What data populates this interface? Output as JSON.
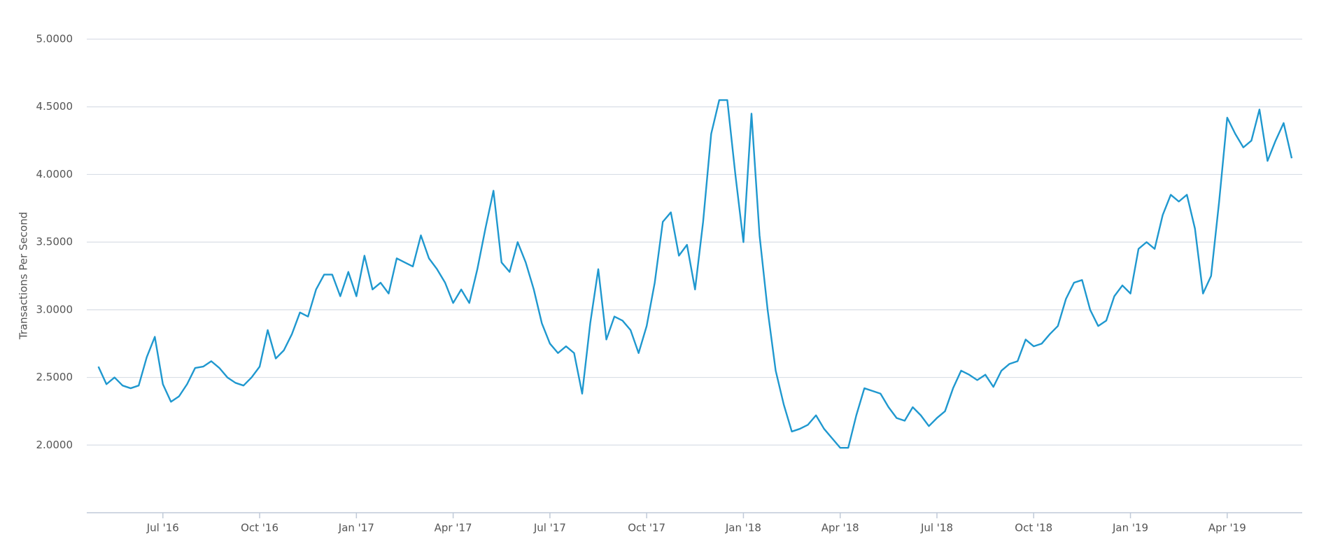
{
  "chart_data": {
    "type": "line",
    "y_label": "Transactions Per Second",
    "xlim": [
      "2016-05",
      "2019-06"
    ],
    "xticks": [
      {
        "value": "2016-07",
        "label": "Jul '16"
      },
      {
        "value": "2016-10",
        "label": "Oct '16"
      },
      {
        "value": "2017-01",
        "label": "Jan '17"
      },
      {
        "value": "2017-04",
        "label": "Apr '17"
      },
      {
        "value": "2017-07",
        "label": "Jul '17"
      },
      {
        "value": "2017-10",
        "label": "Oct '17"
      },
      {
        "value": "2018-01",
        "label": "Jan '18"
      },
      {
        "value": "2018-04",
        "label": "Apr '18"
      },
      {
        "value": "2018-07",
        "label": "Jul '18"
      },
      {
        "value": "2018-10",
        "label": "Oct '18"
      },
      {
        "value": "2019-01",
        "label": "Jan '19"
      },
      {
        "value": "2019-04",
        "label": "Apr '19"
      }
    ],
    "ylim": [
      1.5,
      5.0
    ],
    "yticks": [
      {
        "value": 2.0,
        "label": "2.0000"
      },
      {
        "value": 2.5,
        "label": "2.5000"
      },
      {
        "value": 3.0,
        "label": "3.0000"
      },
      {
        "value": 3.5,
        "label": "3.5000"
      },
      {
        "value": 4.0,
        "label": "4.0000"
      },
      {
        "value": 4.5,
        "label": "4.5000"
      },
      {
        "value": 5.0,
        "label": "5.0000"
      }
    ],
    "grid": true,
    "color": "#1f98cf",
    "values": [
      2.58,
      2.45,
      2.5,
      2.44,
      2.42,
      2.44,
      2.65,
      2.8,
      2.45,
      2.32,
      2.36,
      2.45,
      2.57,
      2.58,
      2.62,
      2.57,
      2.5,
      2.46,
      2.44,
      2.5,
      2.58,
      2.85,
      2.64,
      2.7,
      2.82,
      2.98,
      2.95,
      3.15,
      3.26,
      3.26,
      3.1,
      3.28,
      3.1,
      3.4,
      3.15,
      3.2,
      3.12,
      3.38,
      3.35,
      3.32,
      3.55,
      3.38,
      3.3,
      3.2,
      3.05,
      3.15,
      3.05,
      3.3,
      3.6,
      3.88,
      3.35,
      3.28,
      3.5,
      3.35,
      3.15,
      2.9,
      2.75,
      2.68,
      2.73,
      2.68,
      2.38,
      2.9,
      3.3,
      2.78,
      2.95,
      2.92,
      2.85,
      2.68,
      2.88,
      3.2,
      3.65,
      3.72,
      3.4,
      3.48,
      3.15,
      3.65,
      4.3,
      4.55,
      4.55,
      4.0,
      3.5,
      4.45,
      3.55,
      3.0,
      2.55,
      2.3,
      2.1,
      2.12,
      2.15,
      2.22,
      2.12,
      2.05,
      1.98,
      1.98,
      2.22,
      2.42,
      2.4,
      2.38,
      2.28,
      2.2,
      2.18,
      2.28,
      2.22,
      2.14,
      2.2,
      2.25,
      2.42,
      2.55,
      2.52,
      2.48,
      2.52,
      2.43,
      2.55,
      2.6,
      2.62,
      2.78,
      2.73,
      2.75,
      2.82,
      2.88,
      3.08,
      3.2,
      3.22,
      3.0,
      2.88,
      2.92,
      3.1,
      3.18,
      3.12,
      3.45,
      3.5,
      3.45,
      3.7,
      3.85,
      3.8,
      3.85,
      3.6,
      3.12,
      3.25,
      3.8,
      4.42,
      4.3,
      4.2,
      4.25,
      4.48,
      4.1,
      4.25,
      4.38,
      4.12
    ]
  }
}
